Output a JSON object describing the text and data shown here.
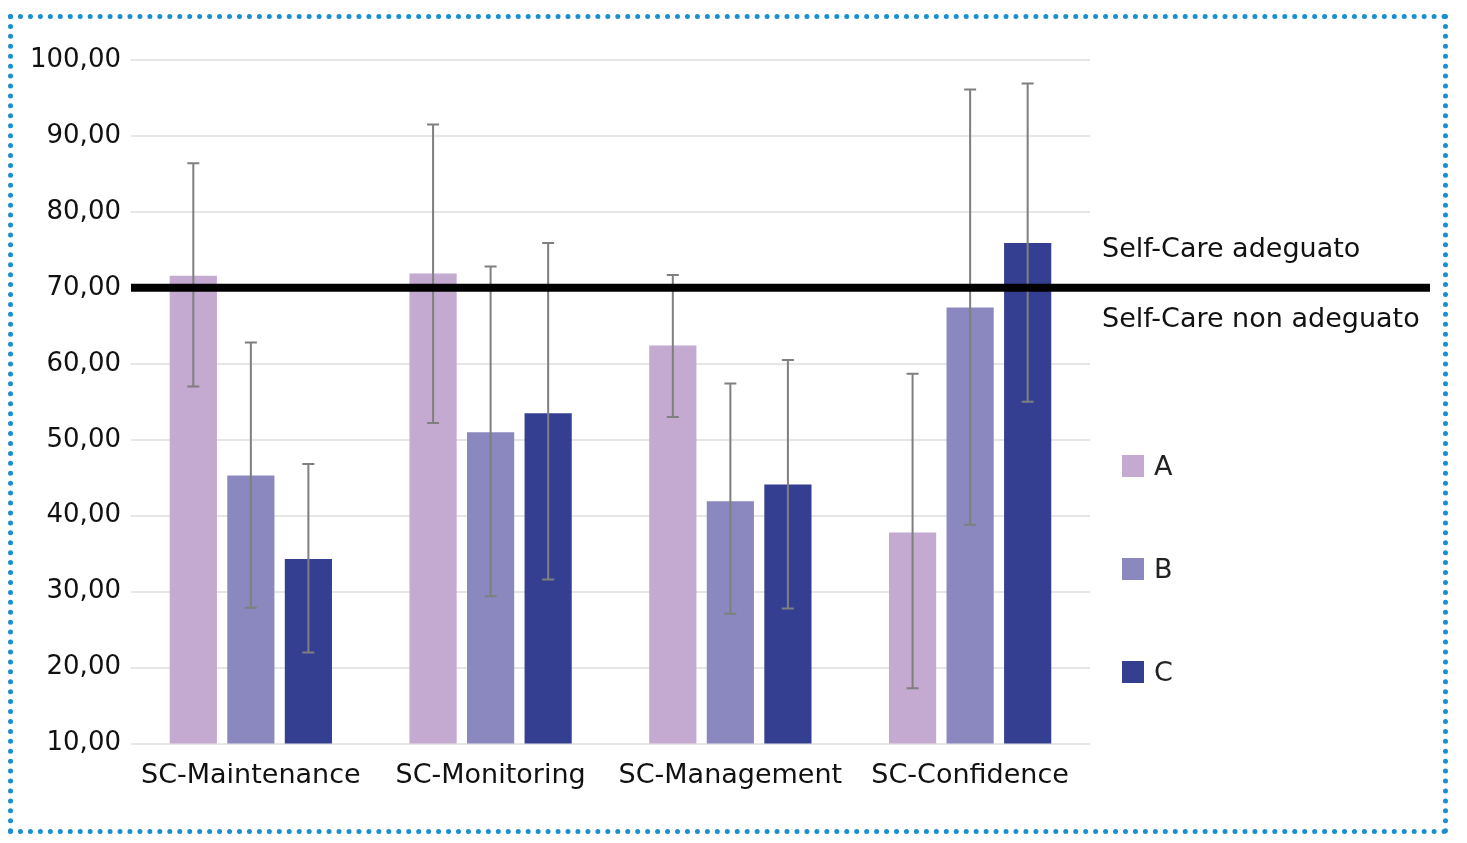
{
  "chart_data": {
    "type": "bar",
    "categories": [
      "SC-Maintenance",
      "SC-Monitoring",
      "SC-Management",
      "SC-Confidence"
    ],
    "series": [
      {
        "name": "A",
        "color": "#c4a9d0",
        "values": [
          71.6,
          71.9,
          62.4,
          37.8
        ],
        "errors": [
          [
            57.0,
            86.4
          ],
          [
            52.2,
            91.5
          ],
          [
            53.0,
            71.7
          ],
          [
            17.3,
            58.7
          ]
        ]
      },
      {
        "name": "B",
        "color": "#8b87bf",
        "values": [
          45.3,
          51.0,
          41.9,
          67.4
        ],
        "errors": [
          [
            27.9,
            62.8
          ],
          [
            29.4,
            72.8
          ],
          [
            27.1,
            57.4
          ],
          [
            38.8,
            96.1
          ]
        ]
      },
      {
        "name": "C",
        "color": "#343f92",
        "values": [
          34.3,
          53.5,
          44.1,
          75.9
        ],
        "errors": [
          [
            22.0,
            46.8
          ],
          [
            31.6,
            75.9
          ],
          [
            27.8,
            60.5
          ],
          [
            55.0,
            96.9
          ]
        ]
      }
    ],
    "ylim": [
      10,
      100
    ],
    "yticks": [
      {
        "value": 10,
        "label": "10,00"
      },
      {
        "value": 20,
        "label": "20,00"
      },
      {
        "value": 30,
        "label": "30,00"
      },
      {
        "value": 40,
        "label": "40,00"
      },
      {
        "value": 50,
        "label": "50,00"
      },
      {
        "value": 60,
        "label": "60,00"
      },
      {
        "value": 70,
        "label": "70,00"
      },
      {
        "value": 80,
        "label": "80,00"
      },
      {
        "value": 90,
        "label": "90,00"
      },
      {
        "value": 100,
        "label": "100,00"
      }
    ],
    "grid": "y",
    "legend": "right",
    "ref_lines": [
      {
        "axis": "y",
        "value": 70,
        "color": "#000000",
        "label": "Self-Care adeguato"
      }
    ],
    "annotations": [
      "Self-Care non adeguato"
    ]
  }
}
